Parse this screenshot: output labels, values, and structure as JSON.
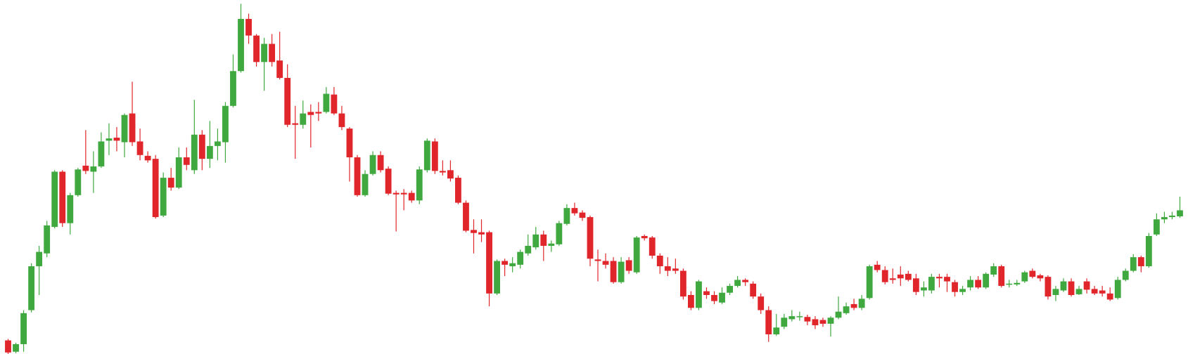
{
  "chart_data": {
    "type": "candlestick",
    "up_color": "#3fa93f",
    "down_color": "#e0262b",
    "ylim": [
      0,
      468
    ],
    "open": [
      18,
      3,
      13,
      58,
      116,
      133,
      168,
      241,
      173,
      210,
      249,
      241,
      248,
      282,
      286,
      280,
      318,
      281,
      262,
      258,
      183,
      233,
      220,
      260,
      243,
      290,
      258,
      275,
      280,
      328,
      374,
      443,
      421,
      386,
      410,
      388,
      365,
      305,
      303,
      320,
      320,
      320,
      343,
      318,
      298,
      260,
      210,
      238,
      263,
      245,
      213,
      213,
      213,
      203,
      243,
      281,
      242,
      243,
      233,
      200,
      164,
      161,
      161,
      80,
      123,
      116,
      118,
      133,
      141,
      158,
      143,
      145,
      172,
      193,
      187,
      181,
      125,
      123,
      123,
      95,
      124,
      108,
      156,
      154,
      130,
      116,
      113,
      110,
      78,
      61,
      83,
      78,
      68,
      81,
      90,
      98,
      93,
      76,
      58,
      26,
      36,
      46,
      49,
      49,
      46,
      45,
      40,
      48,
      54,
      66,
      61,
      74,
      118,
      111,
      100,
      105,
      106,
      100,
      84,
      84,
      102,
      102,
      95,
      82,
      88,
      98,
      88,
      105,
      116,
      92,
      92,
      96,
      110,
      104,
      102,
      78,
      84,
      96,
      79,
      96,
      86,
      84,
      80,
      74,
      98,
      110,
      128,
      116,
      158,
      178,
      181,
      182
    ],
    "high": [
      20,
      15,
      58,
      120,
      143,
      176,
      243,
      243,
      213,
      246,
      296,
      268,
      293,
      305,
      300,
      318,
      360,
      298,
      268,
      263,
      240,
      246,
      273,
      273,
      336,
      296,
      308,
      298,
      333,
      396,
      463,
      450,
      423,
      418,
      423,
      426,
      383,
      328,
      335,
      330,
      333,
      353,
      353,
      328,
      300,
      263,
      243,
      268,
      268,
      248,
      216,
      218,
      216,
      248,
      285,
      285,
      256,
      256,
      236,
      203,
      178,
      178,
      163,
      125,
      126,
      128,
      138,
      158,
      168,
      163,
      150,
      176,
      198,
      200,
      190,
      183,
      138,
      133,
      128,
      128,
      128,
      156,
      158,
      156,
      133,
      128,
      126,
      113,
      83,
      98,
      88,
      83,
      88,
      93,
      103,
      100,
      96,
      80,
      63,
      53,
      53,
      58,
      56,
      52,
      50,
      48,
      50,
      76,
      68,
      73,
      78,
      118,
      123,
      116,
      113,
      116,
      110,
      106,
      96,
      106,
      106,
      106,
      98,
      90,
      103,
      103,
      108,
      120,
      118,
      98,
      98,
      110,
      113,
      106,
      104,
      90,
      100,
      100,
      90,
      100,
      90,
      90,
      88,
      102,
      113,
      132,
      130,
      160,
      186,
      188,
      188,
      208
    ],
    "low": [
      0,
      1,
      3,
      55,
      78,
      128,
      166,
      168,
      158,
      208,
      238,
      213,
      246,
      263,
      268,
      260,
      275,
      256,
      253,
      179,
      181,
      216,
      218,
      243,
      238,
      243,
      246,
      256,
      253,
      326,
      372,
      410,
      380,
      348,
      380,
      363,
      300,
      258,
      298,
      273,
      308,
      318,
      316,
      296,
      228,
      208,
      208,
      236,
      240,
      210,
      162,
      190,
      200,
      198,
      240,
      238,
      236,
      228,
      198,
      161,
      133,
      148,
      63,
      78,
      103,
      108,
      113,
      130,
      138,
      123,
      135,
      143,
      170,
      183,
      176,
      116,
      96,
      113,
      93,
      93,
      106,
      106,
      150,
      126,
      106,
      103,
      106,
      72,
      58,
      58,
      73,
      66,
      66,
      78,
      88,
      90,
      73,
      53,
      16,
      24,
      33,
      43,
      44,
      38,
      33,
      36,
      23,
      46,
      52,
      58,
      58,
      72,
      108,
      92,
      93,
      90,
      96,
      78,
      76,
      80,
      88,
      82,
      76,
      78,
      84,
      86,
      86,
      102,
      88,
      88,
      90,
      94,
      100,
      96,
      72,
      70,
      82,
      76,
      78,
      80,
      78,
      76,
      70,
      72,
      96,
      108,
      108,
      114,
      156,
      173,
      178,
      180
    ],
    "close": [
      2,
      13,
      54,
      116,
      135,
      170,
      241,
      173,
      210,
      244,
      242,
      248,
      281,
      285,
      282,
      316,
      280,
      263,
      256,
      181,
      233,
      220,
      260,
      250,
      290,
      258,
      275,
      281,
      328,
      374,
      443,
      421,
      386,
      410,
      386,
      365,
      303,
      303,
      318,
      316,
      318,
      344,
      318,
      300,
      260,
      210,
      238,
      263,
      243,
      212,
      211,
      211,
      203,
      244,
      282,
      242,
      240,
      232,
      200,
      163,
      160,
      158,
      80,
      123,
      118,
      120,
      135,
      143,
      158,
      143,
      146,
      173,
      193,
      186,
      180,
      126,
      123,
      118,
      95,
      122,
      110,
      154,
      153,
      130,
      116,
      110,
      110,
      76,
      61,
      96,
      78,
      70,
      81,
      90,
      98,
      95,
      76,
      58,
      26,
      35,
      48,
      50,
      50,
      43,
      38,
      40,
      48,
      56,
      63,
      61,
      73,
      116,
      111,
      95,
      98,
      100,
      98,
      82,
      88,
      102,
      100,
      96,
      82,
      86,
      98,
      88,
      106,
      116,
      90,
      93,
      94,
      108,
      102,
      100,
      76,
      86,
      96,
      78,
      86,
      85,
      80,
      80,
      72,
      98,
      110,
      128,
      116,
      156,
      178,
      181,
      183,
      190
    ]
  }
}
